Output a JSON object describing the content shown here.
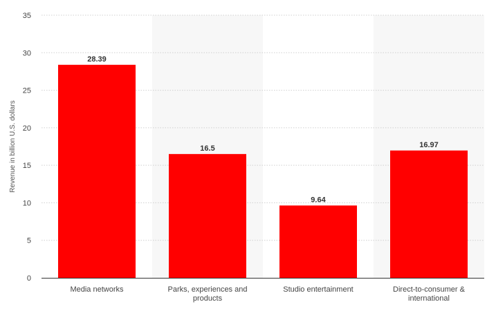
{
  "chart_data": {
    "type": "bar",
    "categories": [
      [
        "Media networks"
      ],
      [
        "Parks, experiences and",
        "products"
      ],
      [
        "Studio entertainment"
      ],
      [
        "Direct-to-consumer &",
        "international"
      ]
    ],
    "values": [
      28.39,
      16.5,
      9.64,
      16.97
    ],
    "value_labels": [
      "28.39",
      "16.5",
      "9.64",
      "16.97"
    ],
    "title": "",
    "xlabel": "",
    "ylabel": "Revenue in billion U.S. dollars",
    "ylim": [
      0,
      35
    ],
    "yticks": [
      0,
      5,
      10,
      15,
      20,
      25,
      30,
      35
    ],
    "grid": true,
    "legend": "none",
    "colors": {
      "bar": "#ff0000",
      "band": "#f7f7f7"
    }
  }
}
